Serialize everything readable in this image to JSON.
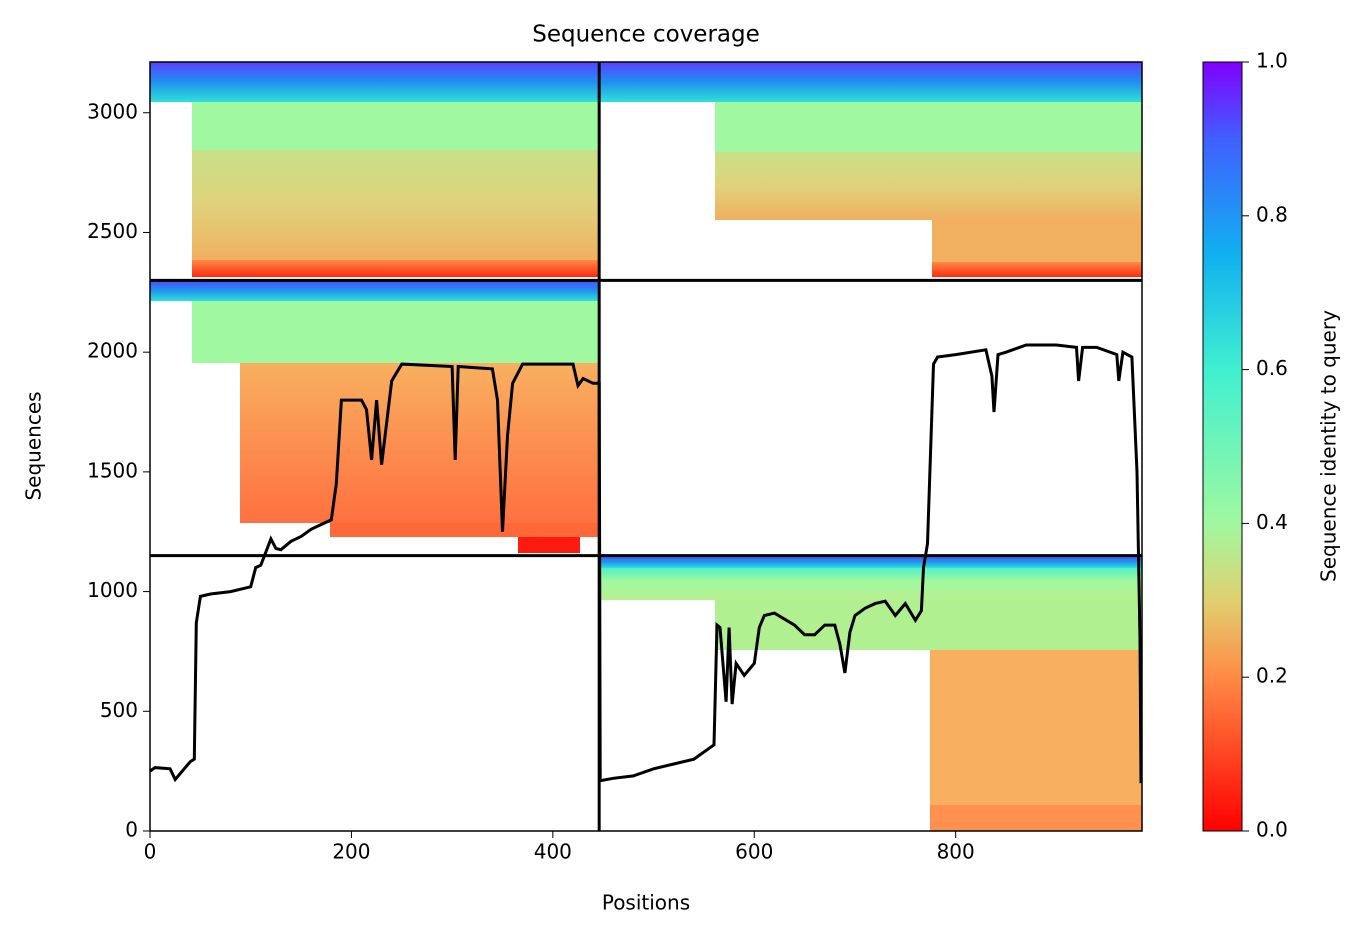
{
  "chart_data": {
    "type": "line",
    "title": "Sequence coverage",
    "x_label": "Positions",
    "y_label": "Sequences",
    "xlim": [
      0,
      985
    ],
    "ylim": [
      0,
      3212
    ],
    "xticks": [
      0,
      200,
      400,
      600,
      800
    ],
    "yticks": [
      0,
      500,
      1000,
      1500,
      2000,
      2500,
      3000
    ],
    "dividers_x": [
      446
    ],
    "dividers_y": [
      1150,
      2300
    ],
    "series": [
      {
        "color": "#000000",
        "x": [
          0,
          5,
          20,
          25,
          40,
          44,
          46,
          50,
          60,
          80,
          100,
          105,
          110,
          120,
          125,
          130,
          140,
          150,
          160,
          170,
          180,
          185,
          190,
          210,
          215,
          220,
          225,
          230,
          240,
          250,
          300,
          303,
          306,
          340,
          345,
          350,
          355,
          360,
          370,
          420,
          425,
          430,
          440,
          446,
          447,
          460,
          480,
          500,
          520,
          540,
          560,
          563,
          566,
          572,
          575,
          578,
          582,
          590,
          600,
          605,
          610,
          620,
          640,
          650,
          660,
          670,
          680,
          685,
          690,
          695,
          700,
          710,
          720,
          730,
          740,
          750,
          760,
          766,
          768,
          772,
          778,
          782,
          800,
          830,
          836,
          838,
          842,
          850,
          870,
          900,
          920,
          922,
          926,
          940,
          960,
          962,
          966,
          975,
          980,
          983,
          984
        ],
        "values": [
          250,
          265,
          260,
          215,
          290,
          300,
          870,
          980,
          990,
          1000,
          1020,
          1100,
          1110,
          1220,
          1180,
          1175,
          1210,
          1230,
          1260,
          1280,
          1300,
          1450,
          1800,
          1800,
          1760,
          1550,
          1800,
          1530,
          1880,
          1950,
          1940,
          1550,
          1940,
          1930,
          1800,
          1250,
          1650,
          1870,
          1950,
          1950,
          1860,
          1890,
          1870,
          1870,
          210,
          220,
          230,
          260,
          280,
          300,
          360,
          860,
          850,
          540,
          850,
          530,
          700,
          650,
          700,
          850,
          900,
          910,
          860,
          820,
          820,
          860,
          860,
          780,
          660,
          830,
          900,
          930,
          950,
          960,
          900,
          950,
          880,
          920,
          1100,
          1200,
          1950,
          1980,
          1990,
          2010,
          1900,
          1750,
          1990,
          2000,
          2030,
          2030,
          2020,
          1880,
          2020,
          2020,
          1990,
          1880,
          2000,
          1980,
          1500,
          800,
          200
        ]
      }
    ],
    "colorbar": {
      "label": "Sequence identity to query",
      "lim": [
        0,
        1
      ],
      "ticks": [
        {
          "value": 0,
          "label": "0.0"
        },
        0.2,
        0.4,
        0.6,
        0.8,
        {
          "value": 1,
          "label": "1.0"
        }
      ]
    }
  }
}
